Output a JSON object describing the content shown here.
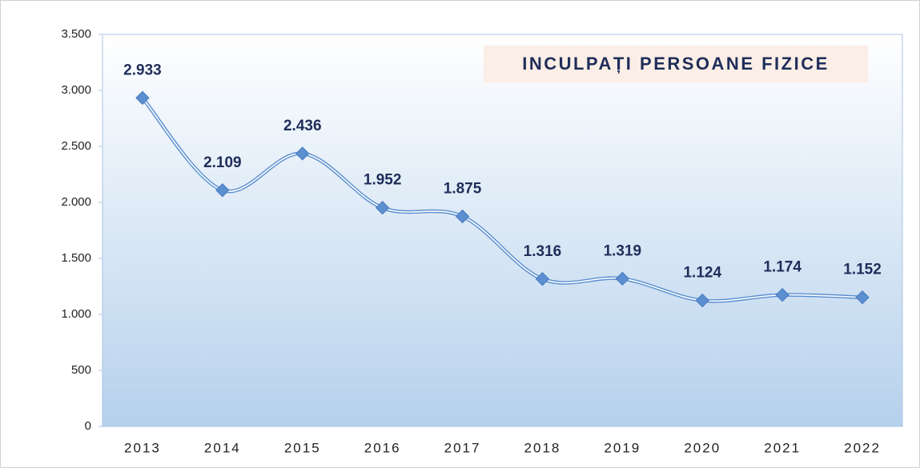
{
  "chart_data": {
    "type": "line",
    "title": "INCULPAȚI PERSOANE FIZICE",
    "categories": [
      "2013",
      "2014",
      "2015",
      "2016",
      "2017",
      "2018",
      "2019",
      "2020",
      "2021",
      "2022"
    ],
    "values": [
      2933,
      2109,
      2436,
      1952,
      1875,
      1316,
      1319,
      1124,
      1174,
      1152
    ],
    "value_labels": [
      "2.933",
      "2.109",
      "2.436",
      "1.952",
      "1.875",
      "1.316",
      "1.319",
      "1.124",
      "1.174",
      "1.152"
    ],
    "color": "#5b8fd0",
    "ylim": [
      0,
      3500
    ],
    "yticks": [
      0,
      500,
      {
        "value": 1000,
        "label": "1.000"
      },
      {
        "value": 1500,
        "label": "1.500"
      },
      {
        "value": 2000,
        "label": "2.000"
      },
      {
        "value": 2500,
        "label": "2.500"
      },
      {
        "value": 3000,
        "label": "3.000"
      },
      {
        "value": 3500,
        "label": "3.500"
      }
    ],
    "smooth": true
  }
}
